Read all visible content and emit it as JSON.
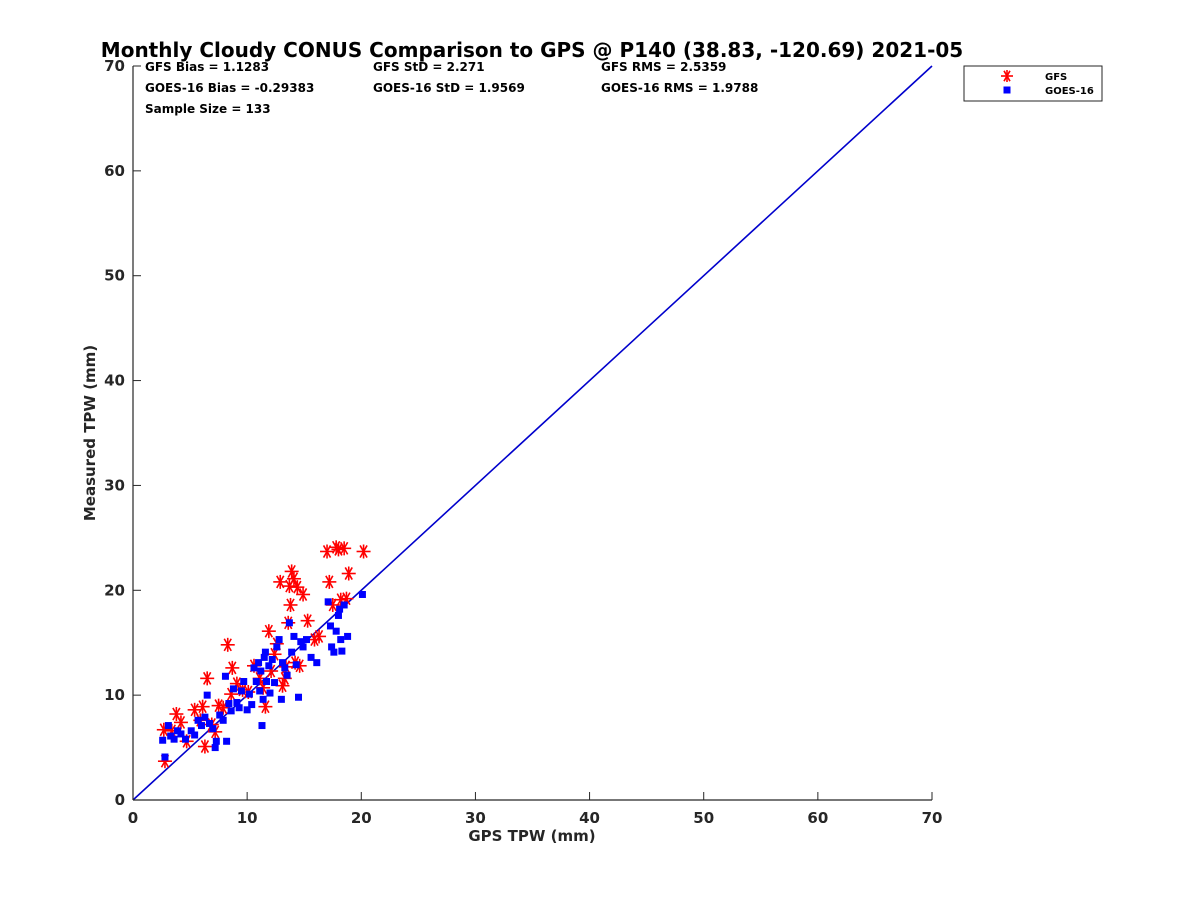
{
  "chart_data": {
    "type": "scatter",
    "title": "Monthly Cloudy CONUS Comparison to GPS @ P140 (38.83, -120.69) 2021-05",
    "xlabel": "GPS TPW (mm)",
    "ylabel": "Measured TPW (mm)",
    "xlim": [
      0,
      70
    ],
    "ylim": [
      0,
      70
    ],
    "xticks": [
      0,
      10,
      20,
      30,
      40,
      50,
      60,
      70
    ],
    "yticks": [
      0,
      10,
      20,
      30,
      40,
      50,
      60,
      70
    ],
    "grid": false,
    "legend_position": "top-right-outside",
    "reference_line": {
      "x": [
        0,
        70
      ],
      "y": [
        0,
        70
      ],
      "color": "#0000cc"
    },
    "stats": {
      "gfs_bias": "GFS Bias = 1.1283",
      "gfs_std": "GFS StD = 2.271",
      "gfs_rms": "GFS RMS = 2.5359",
      "goes_bias": "GOES-16 Bias = -0.29383",
      "goes_std": "GOES-16 StD = 1.9569",
      "goes_rms": "GOES-16 RMS = 1.9788",
      "sample_size": "Sample Size = 133"
    },
    "series": [
      {
        "name": "GFS",
        "marker": "asterisk",
        "color": "#ff0000",
        "points": [
          [
            2.7,
            6.7
          ],
          [
            2.8,
            3.7
          ],
          [
            3.4,
            6.6
          ],
          [
            3.8,
            8.2
          ],
          [
            4.2,
            7.4
          ],
          [
            4.7,
            5.6
          ],
          [
            5.4,
            8.6
          ],
          [
            5.9,
            7.6
          ],
          [
            6.1,
            8.9
          ],
          [
            6.3,
            5.1
          ],
          [
            6.5,
            11.6
          ],
          [
            6.9,
            7.2
          ],
          [
            7.2,
            6.5
          ],
          [
            7.5,
            9.0
          ],
          [
            7.9,
            8.8
          ],
          [
            8.3,
            14.8
          ],
          [
            8.6,
            10.1
          ],
          [
            8.7,
            12.6
          ],
          [
            9.1,
            11.1
          ],
          [
            9.6,
            10.5
          ],
          [
            10.1,
            10.3
          ],
          [
            10.6,
            12.8
          ],
          [
            11.1,
            11.6
          ],
          [
            11.4,
            10.7
          ],
          [
            11.6,
            8.9
          ],
          [
            11.9,
            16.1
          ],
          [
            12.1,
            12.3
          ],
          [
            12.4,
            13.9
          ],
          [
            12.6,
            14.9
          ],
          [
            12.9,
            20.8
          ],
          [
            13.1,
            10.9
          ],
          [
            13.3,
            11.6
          ],
          [
            13.4,
            12.7
          ],
          [
            13.6,
            16.9
          ],
          [
            13.7,
            20.4
          ],
          [
            13.8,
            18.6
          ],
          [
            13.9,
            21.8
          ],
          [
            14.1,
            21.1
          ],
          [
            14.2,
            13.1
          ],
          [
            14.4,
            20.3
          ],
          [
            14.6,
            12.8
          ],
          [
            14.9,
            19.6
          ],
          [
            15.3,
            17.1
          ],
          [
            15.9,
            15.3
          ],
          [
            16.3,
            15.6
          ],
          [
            17.0,
            23.7
          ],
          [
            17.2,
            20.8
          ],
          [
            17.5,
            18.6
          ],
          [
            17.8,
            24.1
          ],
          [
            18.0,
            23.9
          ],
          [
            18.2,
            19.1
          ],
          [
            18.5,
            24.0
          ],
          [
            18.7,
            19.2
          ],
          [
            18.9,
            21.6
          ],
          [
            20.2,
            23.7
          ]
        ]
      },
      {
        "name": "GOES-16",
        "marker": "square",
        "color": "#0000ff",
        "points": [
          [
            2.6,
            5.7
          ],
          [
            2.8,
            4.1
          ],
          [
            3.1,
            7.1
          ],
          [
            3.3,
            6.1
          ],
          [
            3.6,
            5.8
          ],
          [
            3.9,
            6.6
          ],
          [
            4.2,
            6.3
          ],
          [
            4.6,
            5.8
          ],
          [
            5.1,
            6.6
          ],
          [
            5.4,
            6.2
          ],
          [
            5.7,
            7.6
          ],
          [
            6.0,
            7.1
          ],
          [
            6.3,
            7.9
          ],
          [
            6.5,
            10.0
          ],
          [
            6.7,
            7.3
          ],
          [
            7.0,
            6.8
          ],
          [
            7.2,
            5.0
          ],
          [
            7.3,
            5.6
          ],
          [
            7.6,
            8.1
          ],
          [
            7.9,
            7.6
          ],
          [
            8.1,
            11.8
          ],
          [
            8.2,
            5.6
          ],
          [
            8.4,
            9.2
          ],
          [
            8.6,
            8.5
          ],
          [
            8.8,
            10.6
          ],
          [
            9.1,
            9.3
          ],
          [
            9.3,
            8.8
          ],
          [
            9.5,
            10.4
          ],
          [
            9.7,
            11.3
          ],
          [
            10.0,
            8.6
          ],
          [
            10.2,
            10.1
          ],
          [
            10.4,
            9.1
          ],
          [
            10.6,
            12.6
          ],
          [
            10.8,
            11.3
          ],
          [
            11.0,
            13.1
          ],
          [
            11.1,
            10.4
          ],
          [
            11.2,
            12.3
          ],
          [
            11.3,
            7.1
          ],
          [
            11.4,
            9.6
          ],
          [
            11.5,
            13.6
          ],
          [
            11.6,
            14.1
          ],
          [
            11.7,
            11.3
          ],
          [
            11.9,
            12.8
          ],
          [
            12.0,
            10.2
          ],
          [
            12.2,
            13.4
          ],
          [
            12.4,
            11.2
          ],
          [
            12.6,
            14.6
          ],
          [
            12.8,
            15.3
          ],
          [
            13.0,
            9.6
          ],
          [
            13.1,
            13.1
          ],
          [
            13.3,
            12.6
          ],
          [
            13.5,
            11.9
          ],
          [
            13.7,
            16.9
          ],
          [
            13.9,
            14.1
          ],
          [
            14.1,
            15.6
          ],
          [
            14.3,
            12.9
          ],
          [
            14.5,
            9.8
          ],
          [
            14.7,
            15.1
          ],
          [
            14.9,
            14.6
          ],
          [
            15.2,
            15.3
          ],
          [
            15.6,
            13.6
          ],
          [
            16.1,
            13.1
          ],
          [
            17.1,
            18.9
          ],
          [
            17.3,
            16.6
          ],
          [
            17.4,
            14.6
          ],
          [
            17.6,
            14.1
          ],
          [
            17.8,
            16.1
          ],
          [
            18.0,
            17.6
          ],
          [
            18.1,
            18.2
          ],
          [
            18.2,
            15.3
          ],
          [
            18.3,
            14.2
          ],
          [
            18.5,
            18.6
          ],
          [
            18.8,
            15.6
          ],
          [
            20.1,
            19.6
          ]
        ]
      }
    ]
  }
}
